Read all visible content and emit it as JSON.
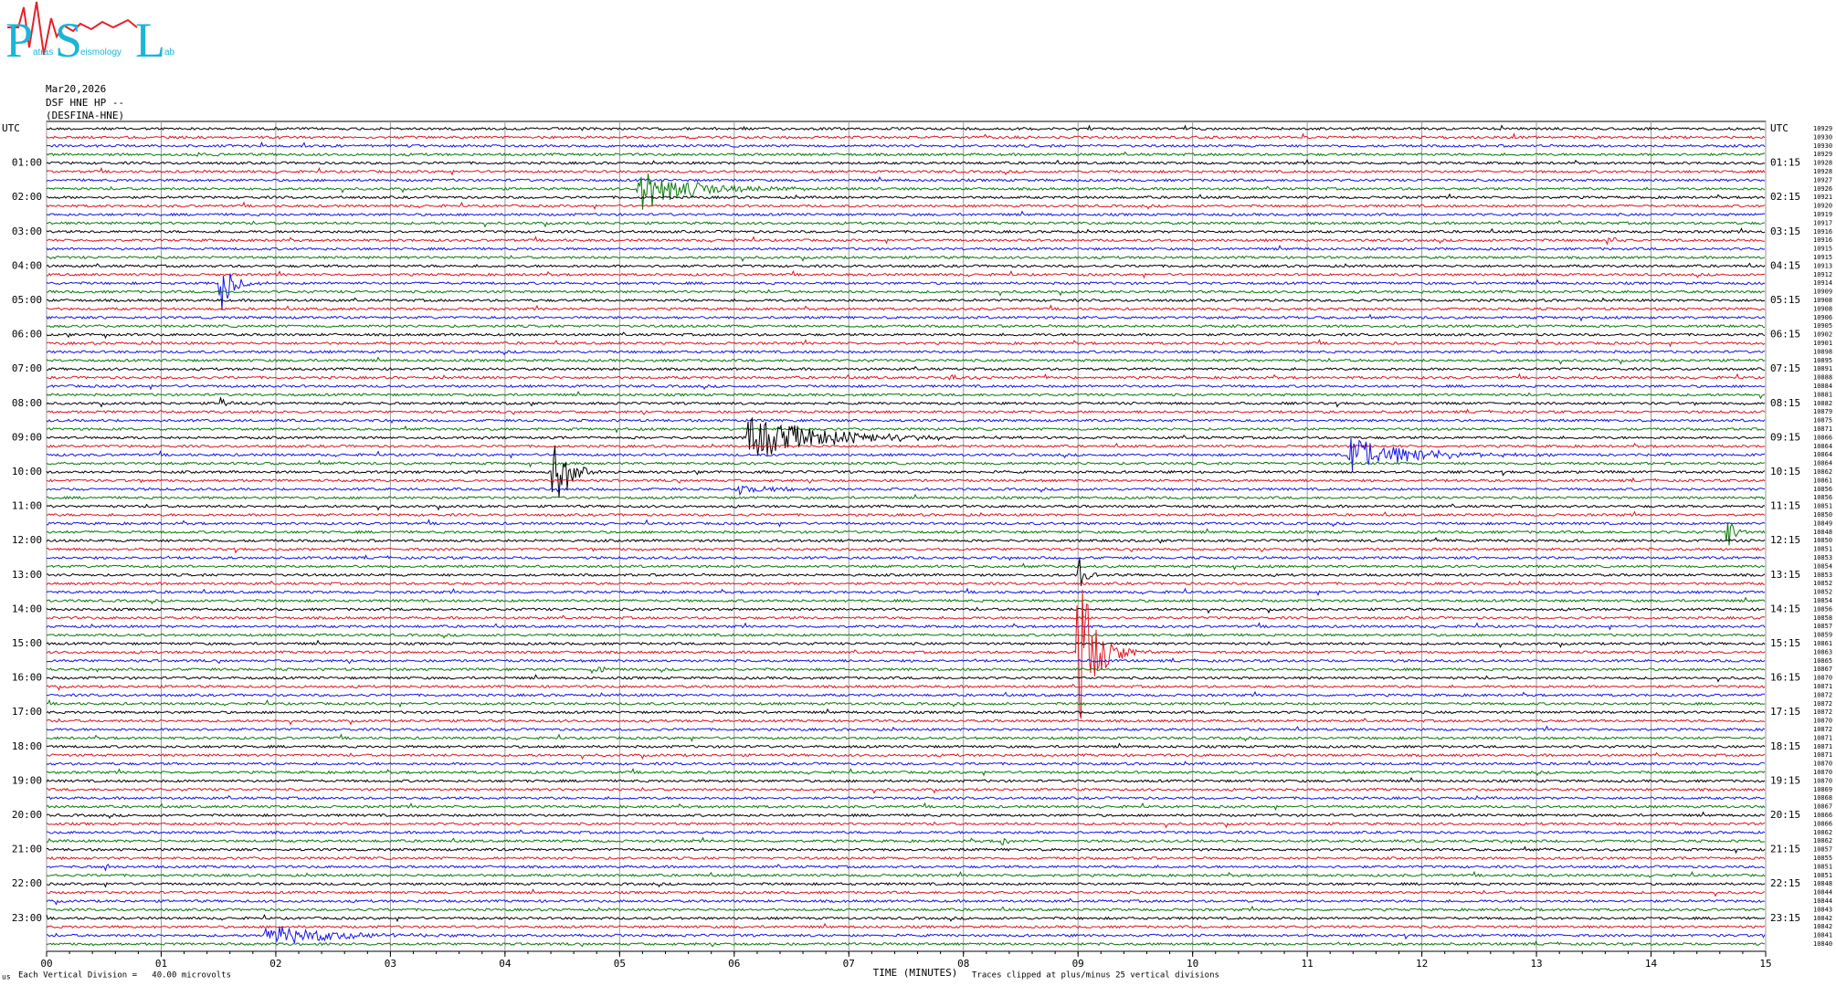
{
  "header": {
    "logo": {
      "letters": [
        "P",
        "S",
        "L"
      ],
      "small": [
        "atras",
        "eismology",
        "ab"
      ]
    },
    "date": "Mar20,2026",
    "channel": "DSF HNE HP --",
    "station": "(DESFINA-HNE)"
  },
  "left_labels": [
    "UTC",
    "01:00",
    "02:00",
    "03:00",
    "04:00",
    "05:00",
    "06:00",
    "07:00",
    "08:00",
    "09:00",
    "10:00",
    "11:00",
    "12:00",
    "13:00",
    "14:00",
    "15:00",
    "16:00",
    "17:00",
    "18:00",
    "19:00",
    "20:00",
    "21:00",
    "22:00",
    "23:00"
  ],
  "right_labels": [
    "UTC",
    "01:15",
    "02:15",
    "03:15",
    "04:15",
    "05:15",
    "06:15",
    "07:15",
    "08:15",
    "09:15",
    "10:15",
    "11:15",
    "12:15",
    "13:15",
    "14:15",
    "15:15",
    "16:15",
    "17:15",
    "18:15",
    "19:15",
    "20:15",
    "21:15",
    "22:15",
    "23:15"
  ],
  "counts": [
    "10929",
    "10930",
    "10930",
    "10929",
    "10928",
    "10928",
    "10927",
    "10926",
    "10921",
    "10920",
    "10919",
    "10917",
    "10916",
    "10916",
    "10915",
    "10915",
    "10913",
    "10912",
    "10914",
    "10909",
    "10908",
    "10908",
    "10906",
    "10905",
    "10902",
    "10901",
    "10898",
    "10895",
    "10891",
    "10888",
    "10884",
    "10881",
    "10882",
    "10879",
    "10875",
    "10871",
    "10866",
    "10864",
    "10864",
    "10864",
    "10862",
    "10861",
    "10856",
    "10856",
    "10851",
    "10850",
    "10849",
    "10848",
    "10850",
    "10851",
    "10853",
    "10854",
    "10853",
    "10852",
    "10852",
    "10854",
    "10856",
    "10858",
    "10857",
    "10859",
    "10861",
    "10863",
    "10865",
    "10867",
    "10870",
    "10871",
    "10872",
    "10872",
    "10872",
    "10870",
    "10872",
    "10871",
    "10871",
    "10871",
    "10870",
    "10870",
    "10870",
    "10869",
    "10868",
    "10867",
    "10866",
    "10866",
    "10862",
    "10862",
    "10857",
    "10855",
    "10851",
    "10851",
    "10848",
    "10844",
    "10844",
    "10843",
    "10842",
    "10842",
    "10841",
    "10840"
  ],
  "x_axis": {
    "ticks": [
      "00",
      "01",
      "02",
      "03",
      "04",
      "05",
      "06",
      "07",
      "08",
      "09",
      "10",
      "11",
      "12",
      "13",
      "14",
      "15"
    ],
    "title": "TIME (MINUTES)"
  },
  "footer": {
    "mark": "us",
    "scale": "Each Vertical Division =   40.00 microvolts",
    "clip": "Traces clipped at plus/minus 25 vertical divisions"
  }
}
